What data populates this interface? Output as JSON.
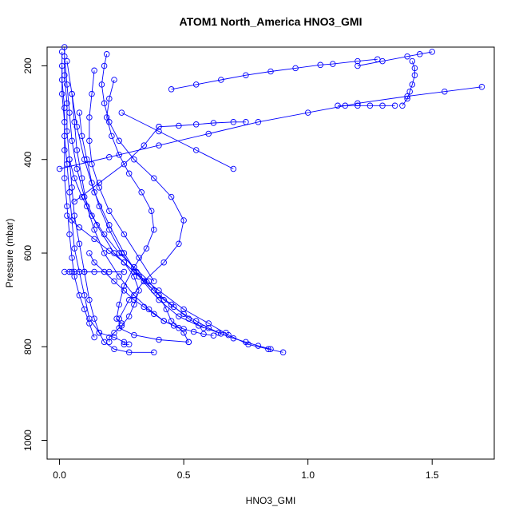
{
  "chart_data": {
    "type": "scatter",
    "title": "ATOM1 North_America HNO3_GMI",
    "xlabel": "HNO3_GMI",
    "ylabel": "Pressure (mbar)",
    "xlim": [
      -0.05,
      1.75
    ],
    "ylim": [
      1040,
      160
    ],
    "y_reversed": true,
    "x_ticks": [
      0.0,
      0.5,
      1.0,
      1.5
    ],
    "x_tick_labels": [
      "0.0",
      "0.5",
      "1.0",
      "1.5"
    ],
    "y_ticks": [
      200,
      400,
      600,
      800,
      1000
    ],
    "y_tick_labels": [
      "200",
      "400",
      "600",
      "800",
      "1000"
    ],
    "color": "#0000ff",
    "marker": "open-circle",
    "connect_points": true,
    "grid": false,
    "series": [
      {
        "x": [
          0.02,
          0.02,
          0.03,
          0.03,
          0.04,
          0.05,
          0.06,
          0.08,
          0.1,
          0.12,
          0.14,
          0.16,
          0.18,
          0.22,
          0.28,
          0.38
        ],
        "y": [
          160,
          220,
          280,
          340,
          400,
          460,
          520,
          580,
          640,
          700,
          740,
          770,
          790,
          805,
          812,
          812
        ]
      },
      {
        "x": [
          0.01,
          0.01,
          0.02,
          0.02,
          0.03,
          0.04,
          0.05,
          0.06,
          0.08,
          0.1,
          0.12,
          0.16,
          0.22,
          0.26,
          0.26,
          0.28
        ],
        "y": [
          170,
          230,
          290,
          350,
          410,
          470,
          530,
          590,
          640,
          690,
          740,
          770,
          780,
          790,
          795,
          795
        ]
      },
      {
        "x": [
          0.02,
          0.03,
          0.04,
          0.05,
          0.07,
          0.1,
          0.15,
          0.22,
          0.3,
          0.4,
          0.5,
          0.6,
          0.68,
          0.76,
          0.84,
          0.9
        ],
        "y": [
          180,
          240,
          300,
          360,
          420,
          480,
          540,
          600,
          640,
          680,
          720,
          750,
          775,
          795,
          805,
          812
        ]
      },
      {
        "x": [
          0.03,
          0.05,
          0.07,
          0.1,
          0.14,
          0.2,
          0.26,
          0.32,
          0.4,
          0.48,
          0.56,
          0.64,
          0.67
        ],
        "y": [
          190,
          260,
          330,
          400,
          470,
          540,
          600,
          650,
          700,
          735,
          755,
          770,
          770
        ]
      },
      {
        "x": [
          0.19,
          0.18,
          0.17,
          0.18,
          0.2,
          0.24,
          0.3,
          0.38,
          0.45,
          0.5,
          0.48,
          0.42,
          0.34,
          0.28,
          0.24,
          0.24,
          0.3,
          0.4,
          0.52
        ],
        "y": [
          175,
          200,
          240,
          280,
          320,
          360,
          400,
          440,
          480,
          530,
          580,
          620,
          660,
          700,
          740,
          760,
          775,
          785,
          790
        ]
      },
      {
        "x": [
          0.22,
          0.2,
          0.19,
          0.21,
          0.24,
          0.28,
          0.33,
          0.37,
          0.38,
          0.35,
          0.3,
          0.26,
          0.24,
          0.23,
          0.25
        ],
        "y": [
          230,
          270,
          310,
          350,
          390,
          430,
          470,
          510,
          550,
          590,
          630,
          670,
          710,
          740,
          750
        ]
      },
      {
        "x": [
          0.4,
          0.34,
          0.26,
          0.16,
          0.06
        ],
        "y": [
          330,
          370,
          410,
          450,
          490
        ]
      },
      {
        "x": [
          1.35,
          1.3,
          1.25,
          1.2,
          1.15,
          1.12
        ],
        "y": [
          285,
          285,
          285,
          285,
          285,
          285
        ]
      },
      {
        "x": [
          0.0,
          0.2,
          0.4,
          0.6,
          0.8,
          1.0,
          1.2,
          1.4,
          1.55,
          1.7
        ],
        "y": [
          420,
          395,
          370,
          345,
          320,
          300,
          280,
          265,
          255,
          245
        ]
      },
      {
        "x": [
          0.75,
          0.7,
          0.62,
          0.55,
          0.48,
          0.4
        ],
        "y": [
          320,
          320,
          322,
          325,
          328,
          330
        ]
      },
      {
        "x": [
          0.45,
          0.55,
          0.65,
          0.75,
          0.85,
          0.95,
          1.05,
          1.1,
          1.2,
          1.28
        ],
        "y": [
          250,
          240,
          230,
          220,
          212,
          205,
          198,
          196,
          190,
          186
        ]
      },
      {
        "x": [
          1.42,
          1.43,
          1.43,
          1.42,
          1.41,
          1.4,
          1.38
        ],
        "y": [
          190,
          205,
          220,
          240,
          255,
          270,
          285
        ]
      },
      {
        "x": [
          1.5,
          1.45,
          1.4,
          1.3,
          1.2
        ],
        "y": [
          170,
          175,
          180,
          190,
          200
        ]
      },
      {
        "x": [
          0.25,
          0.4,
          0.55,
          0.7
        ],
        "y": [
          300,
          340,
          380,
          420
        ]
      },
      {
        "x": [
          0.02,
          0.04,
          0.05,
          0.06,
          0.08,
          0.1,
          0.14,
          0.2,
          0.26
        ],
        "y": [
          640,
          640,
          640,
          640,
          640,
          640,
          640,
          640,
          640
        ]
      },
      {
        "x": [
          0.12,
          0.14,
          0.18,
          0.22,
          0.26,
          0.3,
          0.34,
          0.38,
          0.42,
          0.46,
          0.5,
          0.54,
          0.58,
          0.62
        ],
        "y": [
          600,
          620,
          640,
          660,
          680,
          700,
          715,
          730,
          745,
          755,
          762,
          768,
          773,
          776
        ]
      },
      {
        "x": [
          0.01,
          0.01,
          0.02,
          0.02,
          0.02,
          0.03,
          0.04,
          0.05,
          0.06,
          0.08,
          0.1,
          0.12,
          0.14
        ],
        "y": [
          200,
          260,
          320,
          380,
          440,
          500,
          560,
          610,
          650,
          690,
          720,
          750,
          780
        ]
      },
      {
        "x": [
          0.05,
          0.06,
          0.07,
          0.09,
          0.11,
          0.14,
          0.18,
          0.24,
          0.3,
          0.36,
          0.42,
          0.48
        ],
        "y": [
          260,
          320,
          380,
          440,
          500,
          550,
          600,
          650,
          690,
          720,
          745,
          760
        ]
      },
      {
        "x": [
          0.08,
          0.09,
          0.11,
          0.13,
          0.16,
          0.2,
          0.25,
          0.31,
          0.38,
          0.45,
          0.52,
          0.58
        ],
        "y": [
          300,
          350,
          400,
          450,
          500,
          550,
          600,
          640,
          680,
          710,
          740,
          760
        ]
      },
      {
        "x": [
          0.14,
          0.13,
          0.12,
          0.12,
          0.13,
          0.16,
          0.2,
          0.26,
          0.32,
          0.38
        ],
        "y": [
          210,
          260,
          310,
          360,
          410,
          460,
          510,
          560,
          610,
          660
        ]
      },
      {
        "x": [
          0.26,
          0.3,
          0.34,
          0.38,
          0.42,
          0.46,
          0.5,
          0.55,
          0.6,
          0.65,
          0.7,
          0.75,
          0.8,
          0.85
        ],
        "y": [
          620,
          640,
          660,
          680,
          700,
          715,
          730,
          745,
          760,
          772,
          782,
          790,
          798,
          805
        ]
      },
      {
        "x": [
          0.03,
          0.08,
          0.14,
          0.2,
          0.26,
          0.3,
          0.32,
          0.3,
          0.28,
          0.25,
          0.22,
          0.2,
          0.2
        ],
        "y": [
          520,
          545,
          570,
          595,
          620,
          650,
          680,
          710,
          735,
          755,
          770,
          780,
          790
        ]
      },
      {
        "x": [
          0.04,
          0.06,
          0.09,
          0.13,
          0.18,
          0.24,
          0.3,
          0.36,
          0.4,
          0.43,
          0.45,
          0.5,
          0.52
        ],
        "y": [
          400,
          440,
          480,
          520,
          560,
          600,
          630,
          660,
          690,
          720,
          745,
          770,
          790
        ]
      }
    ]
  }
}
